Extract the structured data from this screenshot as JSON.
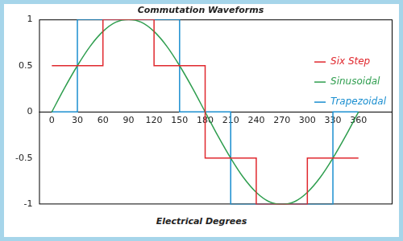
{
  "chart_data": {
    "type": "line",
    "title": "Commutation Waveforms",
    "xlabel": "Electrical Degrees",
    "xlim": [
      -15,
      400
    ],
    "xticks": [
      0,
      30,
      60,
      90,
      120,
      150,
      180,
      210,
      240,
      270,
      300,
      330,
      360
    ],
    "ylim": [
      -1,
      1
    ],
    "yticks": [
      -1,
      -0.5,
      0,
      0.5,
      1
    ],
    "grid": false,
    "legend": "upper right",
    "series": [
      {
        "name": "Six Step",
        "color": "#e0282e",
        "type": "step",
        "x": [
          0,
          60,
          120,
          180,
          240,
          300,
          360
        ],
        "values": [
          0.5,
          1,
          0.5,
          -0.5,
          -1,
          -0.5,
          -0.5
        ]
      },
      {
        "name": "Sinusoidal",
        "color": "#2f9e4f",
        "type": "line",
        "x": [
          0,
          15,
          30,
          45,
          60,
          75,
          90,
          105,
          120,
          135,
          150,
          165,
          180,
          195,
          210,
          225,
          240,
          255,
          270,
          285,
          300,
          315,
          330,
          345,
          360
        ],
        "values": [
          0,
          0.26,
          0.5,
          0.71,
          0.87,
          0.97,
          1,
          0.97,
          0.87,
          0.71,
          0.5,
          0.26,
          0,
          -0.26,
          -0.5,
          -0.71,
          -0.87,
          -0.97,
          -1,
          -0.97,
          -0.87,
          -0.71,
          -0.5,
          -0.26,
          0
        ]
      },
      {
        "name": "Trapezoidal",
        "color": "#1b8fd0",
        "type": "step",
        "x": [
          0,
          30,
          150,
          210,
          330,
          360
        ],
        "values": [
          0,
          1,
          0,
          -1,
          0,
          0
        ]
      }
    ]
  }
}
